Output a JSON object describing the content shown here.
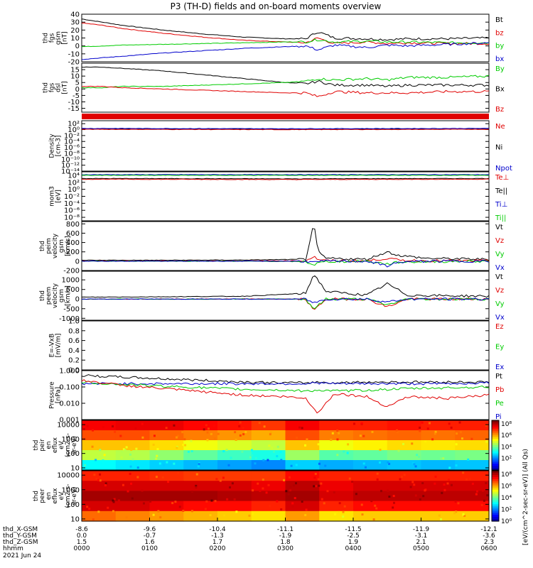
{
  "title": "P3 (TH-D) fields and on-board moments overview",
  "colors": {
    "black": "#000000",
    "red": "#e00000",
    "green": "#00cc00",
    "blue": "#0000cc",
    "magenta": "#ff00ff"
  },
  "chart_data": [
    {
      "id": "fgs_gsm",
      "type": "line",
      "ylabel": [
        "thd",
        "fgs",
        "gsm",
        "[nT]"
      ],
      "ylim": [
        -20,
        40
      ],
      "ticks": [
        "40",
        "30",
        "20",
        "10",
        "0",
        "-10",
        "-20"
      ],
      "tick_values": [
        40,
        30,
        20,
        10,
        0,
        -10,
        -20
      ],
      "legend": [
        {
          "label": "Bt",
          "color": "black"
        },
        {
          "label": "bz",
          "color": "red"
        },
        {
          "label": "by",
          "color": "green"
        },
        {
          "label": "bx",
          "color": "blue"
        }
      ],
      "x": [
        0,
        0.05,
        0.1,
        0.2,
        0.3,
        0.4,
        0.5,
        0.55,
        0.58,
        0.62,
        0.7,
        0.75,
        0.8,
        0.9,
        1.0
      ],
      "series": [
        {
          "name": "Bt",
          "color": "black",
          "values": [
            34,
            30,
            26,
            20,
            15,
            11,
            9,
            9,
            18,
            10,
            9,
            8,
            9,
            9,
            10
          ]
        },
        {
          "name": "bz",
          "color": "red",
          "values": [
            29,
            26,
            22,
            16,
            11,
            7,
            5,
            4,
            10,
            3,
            5,
            3,
            4,
            3,
            3
          ]
        },
        {
          "name": "by",
          "color": "green",
          "values": [
            -1,
            0,
            1,
            2,
            3,
            4,
            5,
            5,
            8,
            5,
            6,
            5,
            5,
            4,
            4
          ]
        },
        {
          "name": "bx",
          "color": "blue",
          "values": [
            -17,
            -15,
            -13,
            -9,
            -6,
            -3,
            -1,
            0,
            -5,
            1,
            -2,
            1,
            0,
            2,
            4
          ]
        }
      ]
    },
    {
      "id": "fgs_dsl",
      "type": "line",
      "ylabel": [
        "thd",
        "fgs",
        "dsl",
        "[nT]"
      ],
      "ylim": [
        -18,
        20
      ],
      "ticks": [
        "15",
        "10",
        "5",
        "0",
        "-5",
        "-10",
        "-15"
      ],
      "tick_values": [
        15,
        10,
        5,
        0,
        -5,
        -10,
        -15
      ],
      "legend": [
        {
          "label": "By",
          "color": "green"
        },
        {
          "label": "Bx",
          "color": "black"
        },
        {
          "label": "Bz",
          "color": "red"
        }
      ],
      "x": [
        0,
        0.05,
        0.1,
        0.2,
        0.3,
        0.4,
        0.5,
        0.55,
        0.58,
        0.62,
        0.7,
        0.75,
        0.8,
        0.9,
        1.0
      ],
      "series": [
        {
          "name": "Bx",
          "color": "black",
          "values": [
            17,
            17,
            16,
            14,
            11,
            8,
            5,
            4,
            6,
            3,
            3,
            2,
            3,
            3,
            3
          ]
        },
        {
          "name": "By",
          "color": "green",
          "values": [
            1,
            1,
            2,
            2,
            3,
            4,
            5,
            6,
            8,
            7,
            8,
            7,
            9,
            9,
            10
          ]
        },
        {
          "name": "Bz",
          "color": "red",
          "values": [
            2,
            2,
            1,
            0,
            -1,
            -2,
            -3,
            -3,
            -6,
            -2,
            -3,
            -3,
            -3,
            -2,
            -2
          ]
        }
      ]
    },
    {
      "id": "mode_bar",
      "type": "bar",
      "color": "red"
    },
    {
      "id": "density",
      "type": "line",
      "ylabel": [
        "Density",
        "[cm-3]"
      ],
      "log": true,
      "ylim_exp": [
        -14,
        3
      ],
      "ticks": [
        "10²",
        "10⁰",
        "10⁻²",
        "10⁻⁴",
        "10⁻⁶",
        "10⁻⁸",
        "10⁻¹⁰",
        "10⁻¹²",
        "10⁻¹⁴"
      ],
      "tick_values": [
        2,
        0,
        -2,
        -4,
        -6,
        -8,
        -10,
        -12,
        -14
      ],
      "legend": [
        {
          "label": "Ne",
          "color": "red"
        },
        {
          "label": "Ni",
          "color": "black"
        },
        {
          "label": "Npot",
          "color": "blue"
        }
      ],
      "x": [
        0,
        0.5,
        1.0
      ],
      "series": [
        {
          "name": "Ni",
          "color": "black",
          "values": [
            0.2,
            0.1,
            0.2
          ]
        },
        {
          "name": "Ne",
          "color": "red",
          "values": [
            0.1,
            0,
            0.1
          ]
        },
        {
          "name": "Npot",
          "color": "blue",
          "values": [
            0.4,
            0.3,
            0.4
          ]
        }
      ]
    },
    {
      "id": "temperature",
      "type": "line",
      "ylabel": [
        "mom3",
        "[eV]"
      ],
      "log": true,
      "ylim_exp": [
        -9,
        5
      ],
      "ticks": [
        "10⁴",
        "10²",
        "10⁰",
        "10⁻²",
        "10⁻⁴",
        "10⁻⁶",
        "10⁻⁸"
      ],
      "tick_values": [
        4,
        2,
        0,
        -2,
        -4,
        -6,
        -8
      ],
      "legend": [
        {
          "label": "Te⊥",
          "color": "red"
        },
        {
          "label": "Te||",
          "color": "black"
        },
        {
          "label": "Ti⊥",
          "color": "blue"
        },
        {
          "label": "Ti||",
          "color": "green"
        }
      ],
      "x": [
        0,
        0.5,
        1.0
      ],
      "series": [
        {
          "name": "Ti",
          "color": "blue",
          "values": [
            4.2,
            4.2,
            4.2
          ]
        },
        {
          "name": "Ti||",
          "color": "green",
          "values": [
            4.0,
            4.0,
            4.0
          ]
        },
        {
          "name": "Te||",
          "color": "black",
          "values": [
            3.1,
            3.0,
            3.1
          ]
        },
        {
          "name": "Te",
          "color": "red",
          "values": [
            2.9,
            2.8,
            2.9
          ]
        }
      ]
    },
    {
      "id": "peim_velocity",
      "type": "line",
      "ylabel": [
        "thd",
        "peim",
        "velocity",
        "gsm",
        "[km/s]"
      ],
      "ylim": [
        -200,
        850
      ],
      "ticks": [
        "800",
        "600",
        "400",
        "200",
        "0",
        "-200"
      ],
      "tick_values": [
        800,
        600,
        400,
        200,
        0,
        -200
      ],
      "legend": [
        {
          "label": "Vt",
          "color": "black"
        },
        {
          "label": "Vz",
          "color": "red"
        },
        {
          "label": "Vy",
          "color": "green"
        },
        {
          "label": "Vx",
          "color": "blue"
        }
      ],
      "x": [
        0,
        0.2,
        0.4,
        0.55,
        0.57,
        0.58,
        0.6,
        0.7,
        0.75,
        0.78,
        0.85,
        1.0
      ],
      "series": [
        {
          "name": "Vt",
          "color": "black",
          "values": [
            20,
            20,
            25,
            40,
            800,
            200,
            60,
            40,
            200,
            120,
            60,
            40
          ]
        },
        {
          "name": "Vz",
          "color": "red",
          "values": [
            5,
            5,
            5,
            10,
            100,
            40,
            10,
            5,
            60,
            20,
            10,
            5
          ]
        },
        {
          "name": "Vy",
          "color": "green",
          "values": [
            0,
            0,
            0,
            -10,
            -80,
            -40,
            -10,
            0,
            -60,
            -20,
            -10,
            0
          ]
        },
        {
          "name": "Vx",
          "color": "blue",
          "values": [
            0,
            0,
            0,
            0,
            -30,
            -10,
            0,
            0,
            -100,
            -20,
            0,
            0
          ]
        }
      ]
    },
    {
      "id": "peem_velocity",
      "type": "line",
      "ylabel": [
        "thd",
        "peem",
        "velocity",
        "gsm",
        "[km/s]"
      ],
      "ylim": [
        -1100,
        1450
      ],
      "ticks": [
        "1000",
        "500",
        "0",
        "-500",
        "-1000"
      ],
      "tick_values": [
        1000,
        500,
        0,
        -500,
        -1000
      ],
      "legend": [
        {
          "label": "Vt",
          "color": "black"
        },
        {
          "label": "Vz",
          "color": "red"
        },
        {
          "label": "Vy",
          "color": "green"
        },
        {
          "label": "Vx",
          "color": "blue"
        }
      ],
      "x": [
        0,
        0.2,
        0.4,
        0.55,
        0.57,
        0.6,
        0.7,
        0.75,
        0.8,
        1.0
      ],
      "series": [
        {
          "name": "Vt",
          "color": "black",
          "values": [
            100,
            120,
            150,
            300,
            1300,
            400,
            200,
            800,
            200,
            150
          ]
        },
        {
          "name": "Vz",
          "color": "red",
          "values": [
            0,
            0,
            0,
            0,
            -600,
            0,
            0,
            -400,
            0,
            0
          ]
        },
        {
          "name": "Vy",
          "color": "green",
          "values": [
            0,
            0,
            0,
            0,
            -500,
            0,
            0,
            -300,
            0,
            0
          ]
        },
        {
          "name": "Vx",
          "color": "blue",
          "values": [
            0,
            0,
            0,
            0,
            -200,
            0,
            0,
            -150,
            0,
            0
          ]
        }
      ]
    },
    {
      "id": "efield",
      "type": "line",
      "ylabel": [
        "E=-VxB",
        "[mV/m]"
      ],
      "ylim": [
        0,
        1
      ],
      "ticks": [
        "1.0",
        "0.8",
        "0.6",
        "0.4",
        "0.2",
        "0.0"
      ],
      "tick_values": [
        1.0,
        0.8,
        0.6,
        0.4,
        0.2,
        0.0
      ],
      "legend": [
        {
          "label": "Ez",
          "color": "red"
        },
        {
          "label": "Ey",
          "color": "green"
        },
        {
          "label": "Ex",
          "color": "blue"
        }
      ],
      "series": []
    },
    {
      "id": "pressure",
      "type": "line",
      "ylabel": [
        "Pressure",
        "[nPa]"
      ],
      "log": true,
      "ylim_exp": [
        -3,
        0
      ],
      "ticks": [
        "1.000",
        "0.100",
        "0.010",
        "0.001"
      ],
      "tick_values": [
        0,
        -1,
        -2,
        -3
      ],
      "legend": [
        {
          "label": "Pt",
          "color": "black"
        },
        {
          "label": "Pb",
          "color": "red"
        },
        {
          "label": "Pe",
          "color": "green"
        },
        {
          "label": "Pi",
          "color": "blue"
        }
      ],
      "x": [
        0,
        0.1,
        0.2,
        0.3,
        0.4,
        0.5,
        0.55,
        0.58,
        0.62,
        0.7,
        0.75,
        0.8,
        0.9,
        1.0
      ],
      "series": [
        {
          "name": "Pt",
          "color": "black",
          "values": [
            -0.3,
            -0.4,
            -0.5,
            -0.6,
            -0.7,
            -0.75,
            -0.75,
            -0.7,
            -0.75,
            -0.7,
            -0.7,
            -0.7,
            -0.7,
            -0.7
          ]
        },
        {
          "name": "Pi",
          "color": "blue",
          "values": [
            -0.8,
            -0.8,
            -0.8,
            -0.8,
            -0.8,
            -0.8,
            -0.8,
            -0.75,
            -0.8,
            -0.8,
            -0.8,
            -0.8,
            -0.8,
            -0.75
          ]
        },
        {
          "name": "Pe",
          "color": "green",
          "values": [
            -0.7,
            -0.85,
            -0.95,
            -1.05,
            -1.15,
            -1.2,
            -1.25,
            -1.2,
            -1.25,
            -1.2,
            -1.15,
            -1.1,
            -1.05,
            -1.0
          ]
        },
        {
          "name": "Pb",
          "color": "red",
          "values": [
            -0.6,
            -0.9,
            -1.1,
            -1.3,
            -1.5,
            -1.6,
            -1.7,
            -2.6,
            -1.4,
            -1.6,
            -2.2,
            -1.6,
            -1.7,
            -1.5
          ]
        }
      ]
    },
    {
      "id": "peir_spec",
      "type": "heatmap",
      "ylabel": [
        "thd",
        "peir",
        "en",
        "eflux",
        "eV",
        "(cm2-s-",
        "sr-eV)"
      ],
      "ticks": [
        "10000",
        "1000",
        "100",
        "10"
      ],
      "tick_values": [
        4,
        3,
        2,
        1
      ],
      "colorbar_ticks": [
        "10⁸",
        "10⁶",
        "10⁴",
        "10²"
      ],
      "colorbar_values": [
        8,
        6,
        4,
        2
      ],
      "rows": [
        [
          7.5,
          7.6,
          7.6,
          7.4,
          7.3,
          7.0,
          7.5,
          7.2,
          7.2,
          7.3,
          7.2,
          7.2
        ],
        [
          6.8,
          6.8,
          6.6,
          6.4,
          6.2,
          6.0,
          6.8,
          6.4,
          6.5,
          6.6,
          6.5,
          6.6
        ],
        [
          5.8,
          5.8,
          5.6,
          5.2,
          5.0,
          4.8,
          5.8,
          5.2,
          5.4,
          5.6,
          5.5,
          5.6
        ],
        [
          4.8,
          4.7,
          4.4,
          4.0,
          3.7,
          3.4,
          4.5,
          3.9,
          4.0,
          4.2,
          4.1,
          4.2
        ],
        [
          3.2,
          3.0,
          2.8,
          2.6,
          2.4,
          2.2,
          2.8,
          2.5,
          2.6,
          2.7,
          2.6,
          2.7
        ]
      ]
    },
    {
      "id": "peer_spec",
      "type": "heatmap",
      "ylabel": [
        "thd",
        "peer",
        "en",
        "eflux",
        "eV",
        "(cm2-s-",
        "sr-eV)"
      ],
      "ticks": [
        "10000",
        "1000",
        "100",
        "10"
      ],
      "tick_values": [
        4,
        3,
        2,
        1
      ],
      "colorbar_ticks": [
        "10⁸",
        "10⁶",
        "10⁴",
        "10²",
        "10⁰"
      ],
      "colorbar_values": [
        8,
        6,
        4,
        2,
        0
      ],
      "rows": [
        [
          7.0,
          7.0,
          6.9,
          6.8,
          6.8,
          6.8,
          7.2,
          7.0,
          7.0,
          7.0,
          7.0,
          7.0
        ],
        [
          7.6,
          7.6,
          7.6,
          7.6,
          7.6,
          7.4,
          7.8,
          7.4,
          7.6,
          7.6,
          7.6,
          7.6
        ],
        [
          8.0,
          8.0,
          8.0,
          8.0,
          7.9,
          7.8,
          8.0,
          7.6,
          7.8,
          7.8,
          7.8,
          7.8
        ],
        [
          7.6,
          7.6,
          7.4,
          7.2,
          7.2,
          7.0,
          7.6,
          7.0,
          7.2,
          7.2,
          7.2,
          7.2
        ],
        [
          6.4,
          6.2,
          6.0,
          5.8,
          5.6,
          5.4,
          6.0,
          5.4,
          5.6,
          5.6,
          5.6,
          5.6
        ]
      ]
    }
  ],
  "colorbar_label": "[eV/(cm^2-sec-sr-eV)] (All Qs)",
  "xaxis": {
    "row_labels": [
      "thd_X-GSM",
      "thd_Y-GSM",
      "thd_Z-GSM",
      "hhmm",
      "2021 Jun 24"
    ],
    "columns": [
      [
        "-8.6",
        "0.0",
        "1.5",
        "0000"
      ],
      [
        "-9.6",
        "-0.7",
        "1.6",
        "0100"
      ],
      [
        "-10.4",
        "-1.3",
        "1.7",
        "0200"
      ],
      [
        "-11.1",
        "-1.9",
        "1.8",
        "0300"
      ],
      [
        "-11.5",
        "-2.5",
        "1.9",
        "0400"
      ],
      [
        "-11.9",
        "-3.1",
        "2.1",
        "0500"
      ],
      [
        "-12.1",
        "-3.6",
        "2.3",
        "0600"
      ]
    ]
  }
}
